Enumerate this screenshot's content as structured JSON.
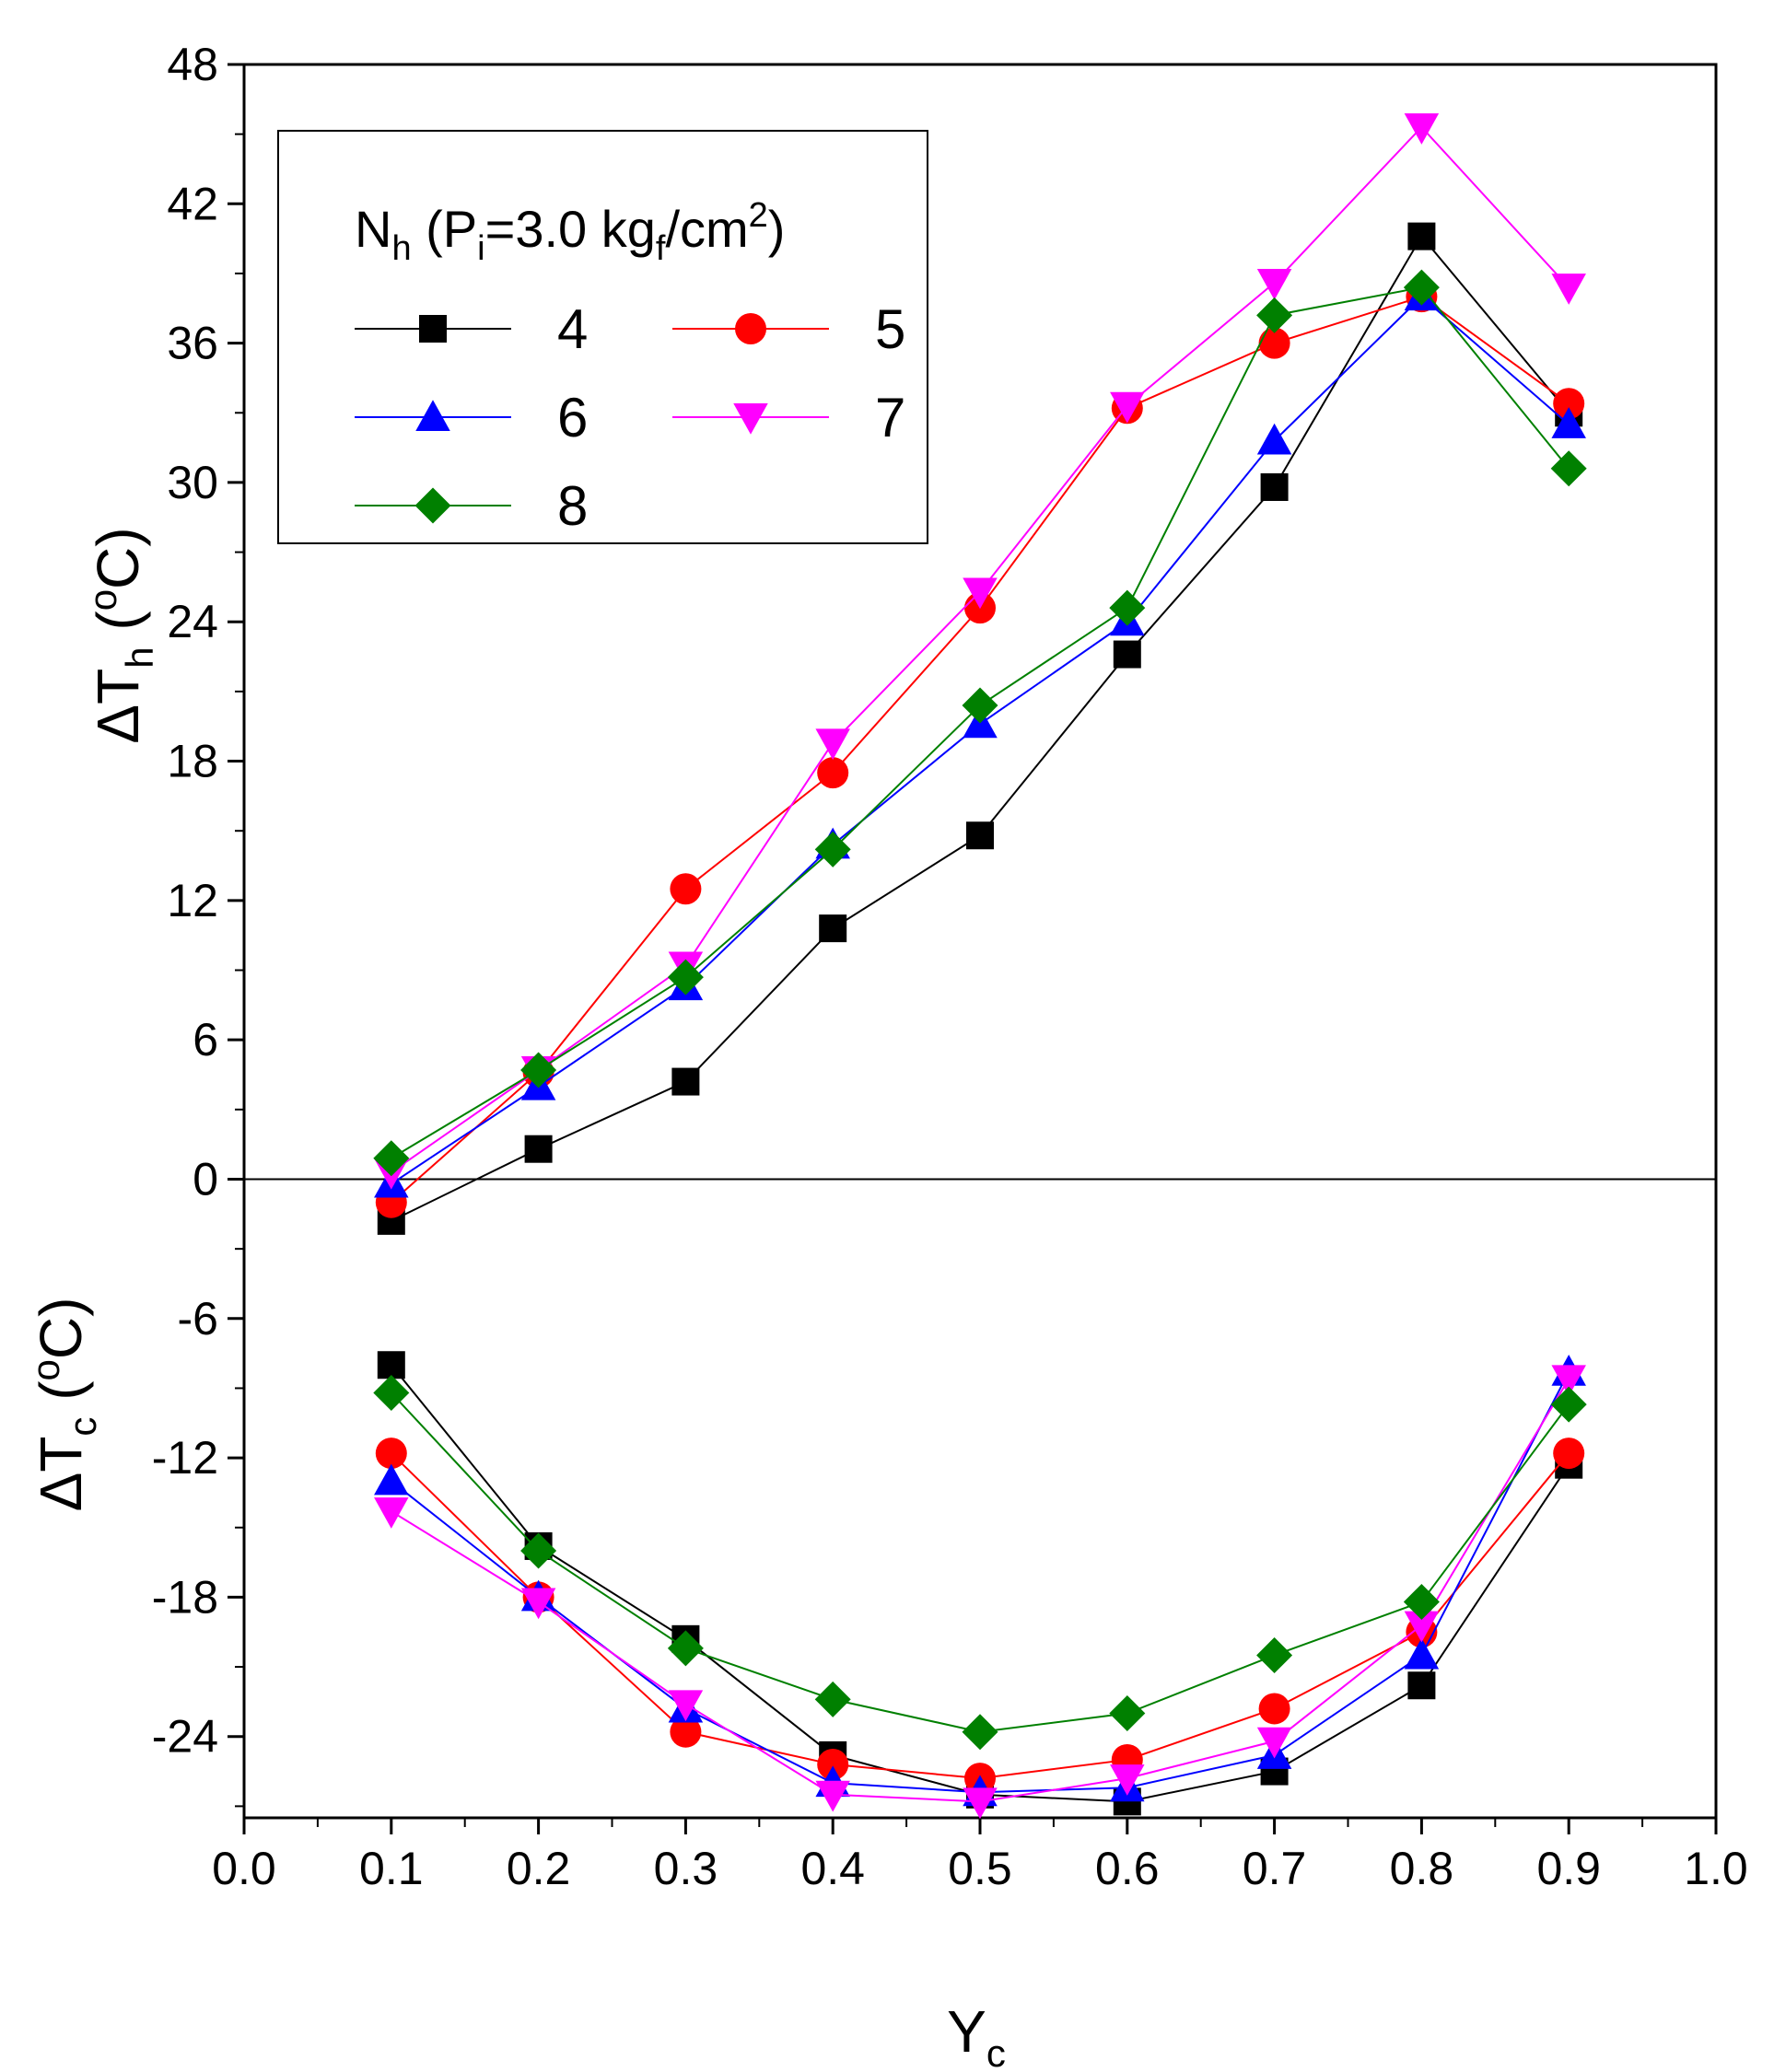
{
  "chart_data": {
    "type": "line",
    "x": [
      0.1,
      0.2,
      0.3,
      0.4,
      0.5,
      0.6,
      0.7,
      0.8,
      0.9
    ],
    "xlim": [
      0.0,
      1.0
    ],
    "ylim": [
      -27.5,
      48
    ],
    "xticks": [
      "0.0",
      "0.1",
      "0.2",
      "0.3",
      "0.4",
      "0.5",
      "0.6",
      "0.7",
      "0.8",
      "0.9",
      "1.0"
    ],
    "yticks": [
      "48",
      "42",
      "36",
      "30",
      "24",
      "18",
      "12",
      "6",
      "0",
      "-6",
      "-12",
      "-18",
      "-24"
    ],
    "xlabel": {
      "main": "Y",
      "sub": "c"
    },
    "ylabel_hot": {
      "prefix": "ΔT",
      "sub": "h",
      "open": " (",
      "sup": "o",
      "unit": "C)"
    },
    "ylabel_cold": {
      "prefix": "ΔT",
      "sub": "c",
      "open": " (",
      "sup": "o",
      "unit": "C)"
    },
    "legend": {
      "title_main": "N",
      "title_sub": "h",
      "title_open": " (P",
      "title_sub2": "i",
      "title_mid": "=3.0 kg",
      "title_sub3": "f",
      "title_unit": "/cm",
      "title_sup": "2",
      "title_close": ")",
      "placement": "top-left"
    },
    "series": [
      {
        "name": "4",
        "color": "#000000",
        "marker": "square",
        "hot": [
          -1.8,
          1.3,
          4.2,
          10.8,
          14.8,
          22.6,
          29.8,
          40.6,
          33.0
        ],
        "cold": [
          -8.0,
          -15.8,
          -19.8,
          -24.8,
          -26.5,
          -26.8,
          -25.5,
          -21.8,
          -12.3
        ]
      },
      {
        "name": "5",
        "color": "#ff0000",
        "marker": "circle",
        "hot": [
          -1.0,
          4.6,
          12.5,
          17.5,
          24.6,
          33.2,
          36.0,
          38.0,
          33.4
        ],
        "cold": [
          -11.8,
          -18.0,
          -23.8,
          -25.2,
          -25.8,
          -25.0,
          -22.8,
          -19.5,
          -11.8
        ]
      },
      {
        "name": "6",
        "color": "#0000ff",
        "marker": "triangle-up",
        "hot": [
          -0.2,
          4.0,
          8.3,
          14.4,
          19.6,
          24.0,
          31.8,
          38.0,
          32.5
        ],
        "cold": [
          -13.0,
          -18.0,
          -22.8,
          -26.0,
          -26.4,
          -26.2,
          -24.8,
          -20.5,
          -8.3
        ]
      },
      {
        "name": "7",
        "color": "#ff00ff",
        "marker": "triangle-down",
        "hot": [
          0.3,
          4.7,
          9.2,
          18.8,
          25.3,
          33.3,
          38.6,
          45.3,
          38.4
        ],
        "cold": [
          -14.3,
          -18.2,
          -22.6,
          -26.5,
          -26.8,
          -25.8,
          -24.2,
          -19.2,
          -8.6
        ]
      },
      {
        "name": "8",
        "color": "#008000",
        "marker": "diamond",
        "hot": [
          0.9,
          4.7,
          8.7,
          14.2,
          20.4,
          24.6,
          37.2,
          38.4,
          30.6
        ],
        "cold": [
          -9.2,
          -16.0,
          -20.2,
          -22.4,
          -23.8,
          -23.0,
          -20.5,
          -18.2,
          -9.7
        ]
      }
    ]
  }
}
